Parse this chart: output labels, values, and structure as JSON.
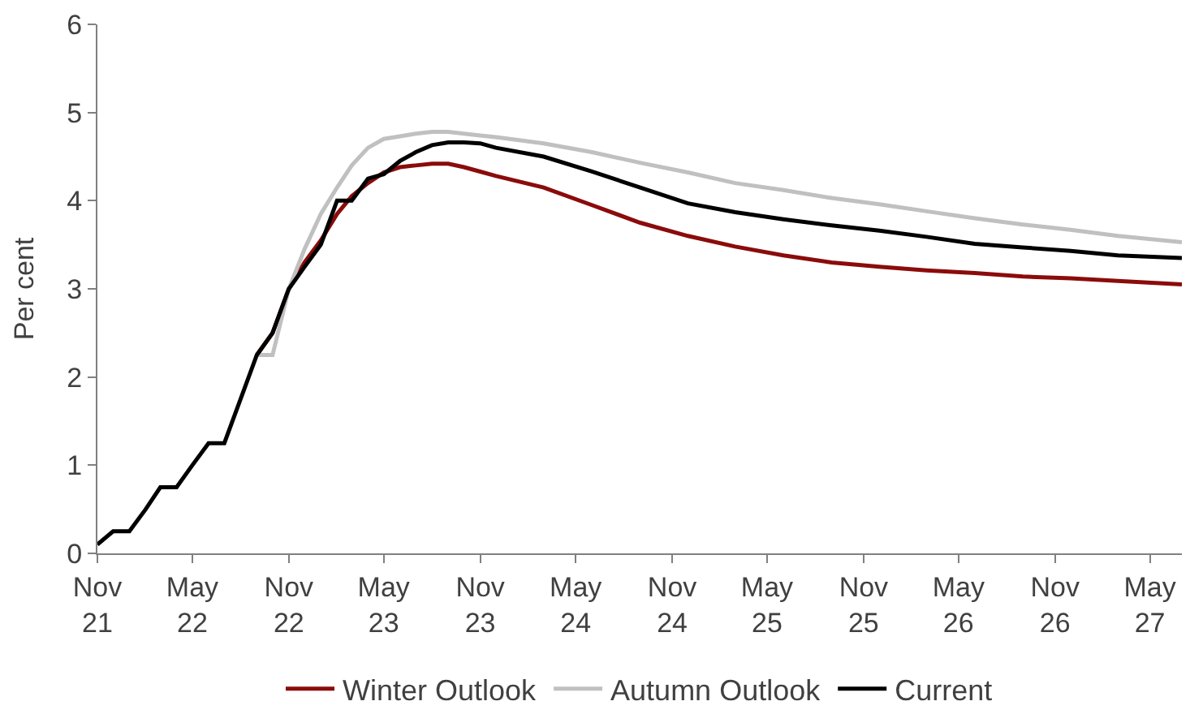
{
  "chart_data": {
    "type": "line",
    "ylabel": "Per cent",
    "x": [
      "2021-11",
      "2021-12",
      "2022-01",
      "2022-02",
      "2022-03",
      "2022-04",
      "2022-05",
      "2022-06",
      "2022-07",
      "2022-08",
      "2022-09",
      "2022-10",
      "2022-11",
      "2022-12",
      "2023-01",
      "2023-02",
      "2023-03",
      "2023-04",
      "2023-05",
      "2023-06",
      "2023-07",
      "2023-08",
      "2023-09",
      "2023-10",
      "2023-11",
      "2023-12",
      "2024-03",
      "2024-06",
      "2024-09",
      "2024-12",
      "2025-03",
      "2025-06",
      "2025-09",
      "2025-12",
      "2026-03",
      "2026-06",
      "2026-09",
      "2026-12",
      "2027-03",
      "2027-07"
    ],
    "series": [
      {
        "name": "Winter Outlook",
        "color": "#8b0b0b",
        "values": [
          null,
          null,
          null,
          null,
          null,
          null,
          null,
          null,
          null,
          null,
          2.25,
          2.5,
          3.0,
          3.3,
          3.55,
          3.85,
          4.05,
          4.2,
          4.32,
          4.38,
          4.4,
          4.42,
          4.42,
          4.38,
          4.33,
          4.28,
          4.15,
          3.95,
          3.75,
          3.6,
          3.48,
          3.38,
          3.3,
          3.25,
          3.21,
          3.18,
          3.14,
          3.12,
          3.09,
          3.05
        ]
      },
      {
        "name": "Autumn Outlook",
        "color": "#c0c0c0",
        "values": [
          null,
          null,
          null,
          null,
          null,
          null,
          null,
          null,
          null,
          null,
          2.25,
          2.25,
          3.0,
          3.45,
          3.85,
          4.15,
          4.4,
          4.6,
          4.7,
          4.73,
          4.76,
          4.78,
          4.78,
          4.76,
          4.74,
          4.72,
          4.65,
          4.55,
          4.43,
          4.32,
          4.2,
          4.12,
          4.03,
          3.96,
          3.88,
          3.8,
          3.73,
          3.67,
          3.6,
          3.53
        ]
      },
      {
        "name": "Current",
        "color": "#000000",
        "values": [
          0.1,
          0.25,
          0.25,
          0.5,
          0.75,
          0.75,
          1.0,
          1.25,
          1.25,
          1.75,
          2.25,
          2.5,
          3.0,
          3.25,
          3.5,
          4.0,
          4.0,
          4.25,
          4.3,
          4.45,
          4.55,
          4.63,
          4.66,
          4.66,
          4.65,
          4.6,
          4.5,
          4.33,
          4.15,
          3.97,
          3.87,
          3.79,
          3.72,
          3.66,
          3.59,
          3.51,
          3.47,
          3.43,
          3.38,
          3.35
        ]
      }
    ],
    "xlim": [
      "2021-11",
      "2027-07"
    ],
    "xticks": [
      {
        "value": "2021-11",
        "label": "Nov\n21"
      },
      {
        "value": "2022-05",
        "label": "May\n22"
      },
      {
        "value": "2022-11",
        "label": "Nov\n22"
      },
      {
        "value": "2023-05",
        "label": "May\n23"
      },
      {
        "value": "2023-11",
        "label": "Nov\n23"
      },
      {
        "value": "2024-05",
        "label": "May\n24"
      },
      {
        "value": "2024-11",
        "label": "Nov\n24"
      },
      {
        "value": "2025-05",
        "label": "May\n25"
      },
      {
        "value": "2025-11",
        "label": "Nov\n25"
      },
      {
        "value": "2026-05",
        "label": "May\n26"
      },
      {
        "value": "2026-11",
        "label": "Nov\n26"
      },
      {
        "value": "2027-05",
        "label": "May\n27"
      }
    ],
    "ylim": [
      0,
      6
    ],
    "yticks": [
      0,
      1,
      2,
      3,
      4,
      5,
      6
    ],
    "legend": "bottom",
    "marker": "none",
    "line_style": "solid"
  }
}
